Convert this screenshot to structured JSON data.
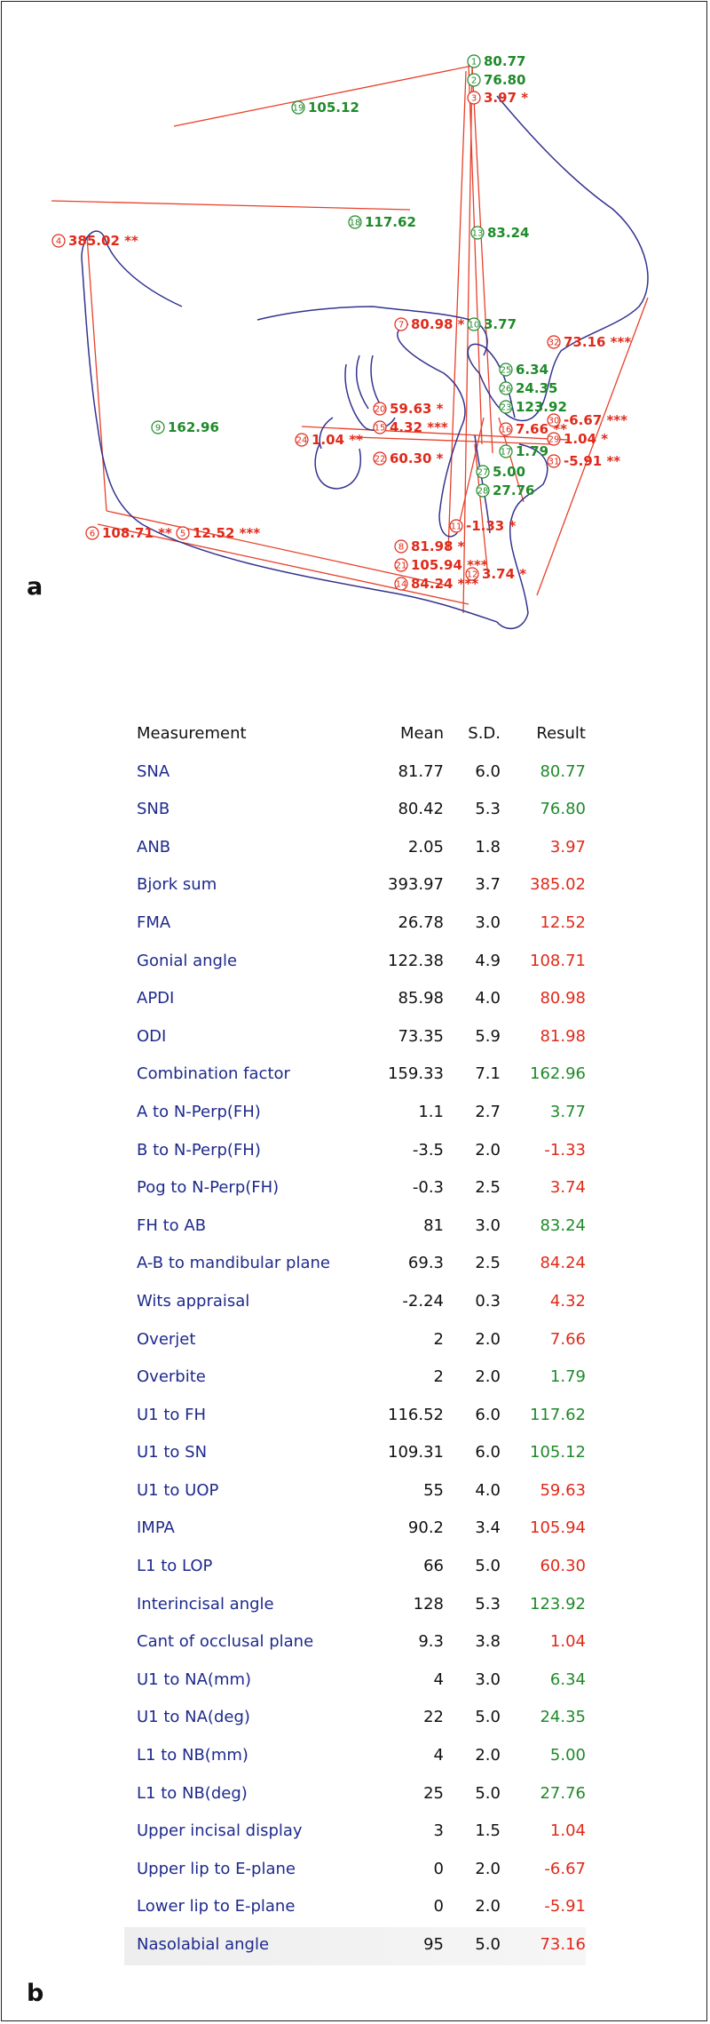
{
  "panel_a": "a",
  "panel_b": "b",
  "colors": {
    "normal": "#1f8a2a",
    "abnormal": "#e02a1a",
    "outline": "#33338f",
    "lines": "#e8402a",
    "name": "#1e2a8c"
  },
  "annotations": [
    {
      "n": "1",
      "v": "80.77",
      "c": "g"
    },
    {
      "n": "2",
      "v": "76.80",
      "c": "g"
    },
    {
      "n": "3",
      "v": "3.97 *",
      "c": "r"
    },
    {
      "n": "19",
      "v": "105.12",
      "c": "g"
    },
    {
      "n": "18",
      "v": "117.62",
      "c": "g"
    },
    {
      "n": "13",
      "v": "83.24",
      "c": "g"
    },
    {
      "n": "4",
      "v": "385.02 **",
      "c": "r"
    },
    {
      "n": "7",
      "v": "80.98 *",
      "c": "r"
    },
    {
      "n": "10",
      "v": "3.77",
      "c": "g"
    },
    {
      "n": "32",
      "v": "73.16 ***",
      "c": "r"
    },
    {
      "n": "25",
      "v": "6.34",
      "c": "g"
    },
    {
      "n": "26",
      "v": "24.35",
      "c": "g"
    },
    {
      "n": "23",
      "v": "123.92",
      "c": "g"
    },
    {
      "n": "9",
      "v": "162.96",
      "c": "g"
    },
    {
      "n": "20",
      "v": "59.63 *",
      "c": "r"
    },
    {
      "n": "15",
      "v": "4.32 ***",
      "c": "r"
    },
    {
      "n": "24",
      "v": "1.04 **",
      "c": "r"
    },
    {
      "n": "22",
      "v": "60.30 *",
      "c": "r"
    },
    {
      "n": "16",
      "v": "7.66 **",
      "c": "r"
    },
    {
      "n": "30",
      "v": "-6.67 ***",
      "c": "r"
    },
    {
      "n": "29",
      "v": "1.04 *",
      "c": "r"
    },
    {
      "n": "17",
      "v": "1.79",
      "c": "g"
    },
    {
      "n": "31",
      "v": "-5.91 **",
      "c": "r"
    },
    {
      "n": "27",
      "v": "5.00",
      "c": "g"
    },
    {
      "n": "28",
      "v": "27.76",
      "c": "g"
    },
    {
      "n": "6",
      "v": "108.71 **",
      "c": "r"
    },
    {
      "n": "5",
      "v": "12.52 ***",
      "c": "r"
    },
    {
      "n": "11",
      "v": "-1.33 *",
      "c": "r"
    },
    {
      "n": "8",
      "v": "81.98 *",
      "c": "r"
    },
    {
      "n": "21",
      "v": "105.94 ***",
      "c": "r"
    },
    {
      "n": "12",
      "v": "3.74 *",
      "c": "r"
    },
    {
      "n": "14",
      "v": "84.24 ***",
      "c": "r"
    }
  ],
  "table": {
    "headers": {
      "measurement": "Measurement",
      "mean": "Mean",
      "sd": "S.D.",
      "result": "Result"
    },
    "rows": [
      {
        "name": "SNA",
        "mean": "81.77",
        "sd": "6.0",
        "result": "80.77",
        "c": "g"
      },
      {
        "name": "SNB",
        "mean": "80.42",
        "sd": "5.3",
        "result": "76.80",
        "c": "g"
      },
      {
        "name": "ANB",
        "mean": "2.05",
        "sd": "1.8",
        "result": "3.97",
        "c": "r"
      },
      {
        "name": "Bjork sum",
        "mean": "393.97",
        "sd": "3.7",
        "result": "385.02",
        "c": "r"
      },
      {
        "name": "FMA",
        "mean": "26.78",
        "sd": "3.0",
        "result": "12.52",
        "c": "r"
      },
      {
        "name": "Gonial angle",
        "mean": "122.38",
        "sd": "4.9",
        "result": "108.71",
        "c": "r"
      },
      {
        "name": "APDI",
        "mean": "85.98",
        "sd": "4.0",
        "result": "80.98",
        "c": "r"
      },
      {
        "name": "ODI",
        "mean": "73.35",
        "sd": "5.9",
        "result": "81.98",
        "c": "r"
      },
      {
        "name": "Combination factor",
        "mean": "159.33",
        "sd": "7.1",
        "result": "162.96",
        "c": "g"
      },
      {
        "name": "A to N-Perp(FH)",
        "mean": "1.1",
        "sd": "2.7",
        "result": "3.77",
        "c": "g"
      },
      {
        "name": "B to N-Perp(FH)",
        "mean": "-3.5",
        "sd": "2.0",
        "result": "-1.33",
        "c": "r"
      },
      {
        "name": "Pog to N-Perp(FH)",
        "mean": "-0.3",
        "sd": "2.5",
        "result": "3.74",
        "c": "r"
      },
      {
        "name": "FH to AB",
        "mean": "81",
        "sd": "3.0",
        "result": "83.24",
        "c": "g"
      },
      {
        "name": "A-B to mandibular plane",
        "mean": "69.3",
        "sd": "2.5",
        "result": "84.24",
        "c": "r"
      },
      {
        "name": "Wits appraisal",
        "mean": "-2.24",
        "sd": "0.3",
        "result": "4.32",
        "c": "r"
      },
      {
        "name": "Overjet",
        "mean": "2",
        "sd": "2.0",
        "result": "7.66",
        "c": "r"
      },
      {
        "name": "Overbite",
        "mean": "2",
        "sd": "2.0",
        "result": "1.79",
        "c": "g"
      },
      {
        "name": "U1 to FH",
        "mean": "116.52",
        "sd": "6.0",
        "result": "117.62",
        "c": "g"
      },
      {
        "name": "U1 to SN",
        "mean": "109.31",
        "sd": "6.0",
        "result": "105.12",
        "c": "g"
      },
      {
        "name": "U1 to UOP",
        "mean": "55",
        "sd": "4.0",
        "result": "59.63",
        "c": "r"
      },
      {
        "name": "IMPA",
        "mean": "90.2",
        "sd": "3.4",
        "result": "105.94",
        "c": "r"
      },
      {
        "name": "L1 to LOP",
        "mean": "66",
        "sd": "5.0",
        "result": "60.30",
        "c": "r"
      },
      {
        "name": "Interincisal angle",
        "mean": "128",
        "sd": "5.3",
        "result": "123.92",
        "c": "g"
      },
      {
        "name": "Cant of occlusal plane",
        "mean": "9.3",
        "sd": "3.8",
        "result": "1.04",
        "c": "r"
      },
      {
        "name": "U1 to NA(mm)",
        "mean": "4",
        "sd": "3.0",
        "result": "6.34",
        "c": "g"
      },
      {
        "name": "U1 to NA(deg)",
        "mean": "22",
        "sd": "5.0",
        "result": "24.35",
        "c": "g"
      },
      {
        "name": "L1 to NB(mm)",
        "mean": "4",
        "sd": "2.0",
        "result": "5.00",
        "c": "g"
      },
      {
        "name": "L1 to NB(deg)",
        "mean": "25",
        "sd": "5.0",
        "result": "27.76",
        "c": "g"
      },
      {
        "name": "Upper incisal display",
        "mean": "3",
        "sd": "1.5",
        "result": "1.04",
        "c": "r"
      },
      {
        "name": "Upper lip to E-plane",
        "mean": "0",
        "sd": "2.0",
        "result": "-6.67",
        "c": "r"
      },
      {
        "name": "Lower lip to E-plane",
        "mean": "0",
        "sd": "2.0",
        "result": "-5.91",
        "c": "r"
      },
      {
        "name": "Nasolabial angle",
        "mean": "95",
        "sd": "5.0",
        "result": "73.16",
        "c": "r"
      }
    ]
  }
}
